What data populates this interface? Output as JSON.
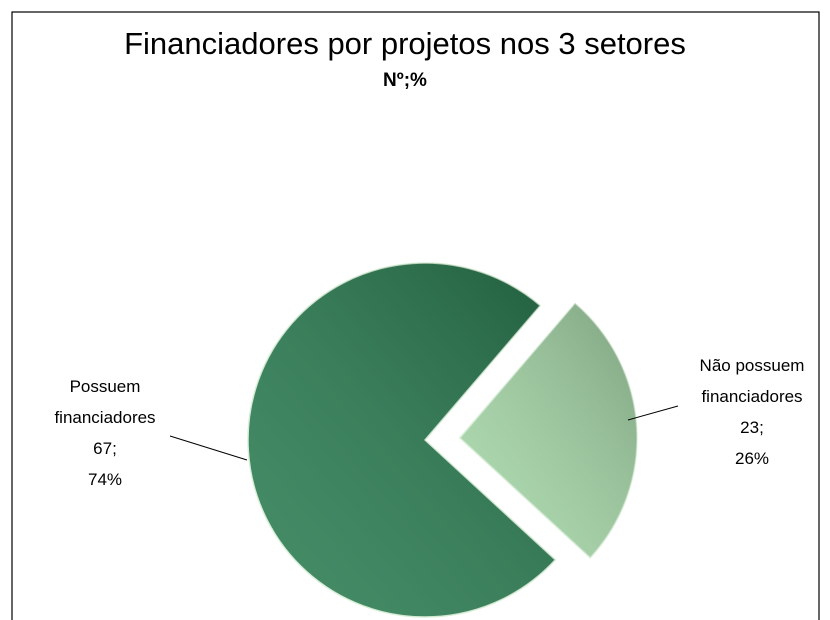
{
  "chart_data": {
    "type": "pie",
    "title": "Financiadores por projetos nos 3 setores",
    "subtitle": "Nº;%",
    "categories": [
      "Possuem financiadores",
      "Não possuem financiadores"
    ],
    "values": [
      67,
      23
    ],
    "value_labels": [
      "67; 74%",
      "23; 26%"
    ],
    "colors": [
      "#2a7d52",
      "#a6d8a8"
    ],
    "explode": [
      false,
      true
    ]
  }
}
